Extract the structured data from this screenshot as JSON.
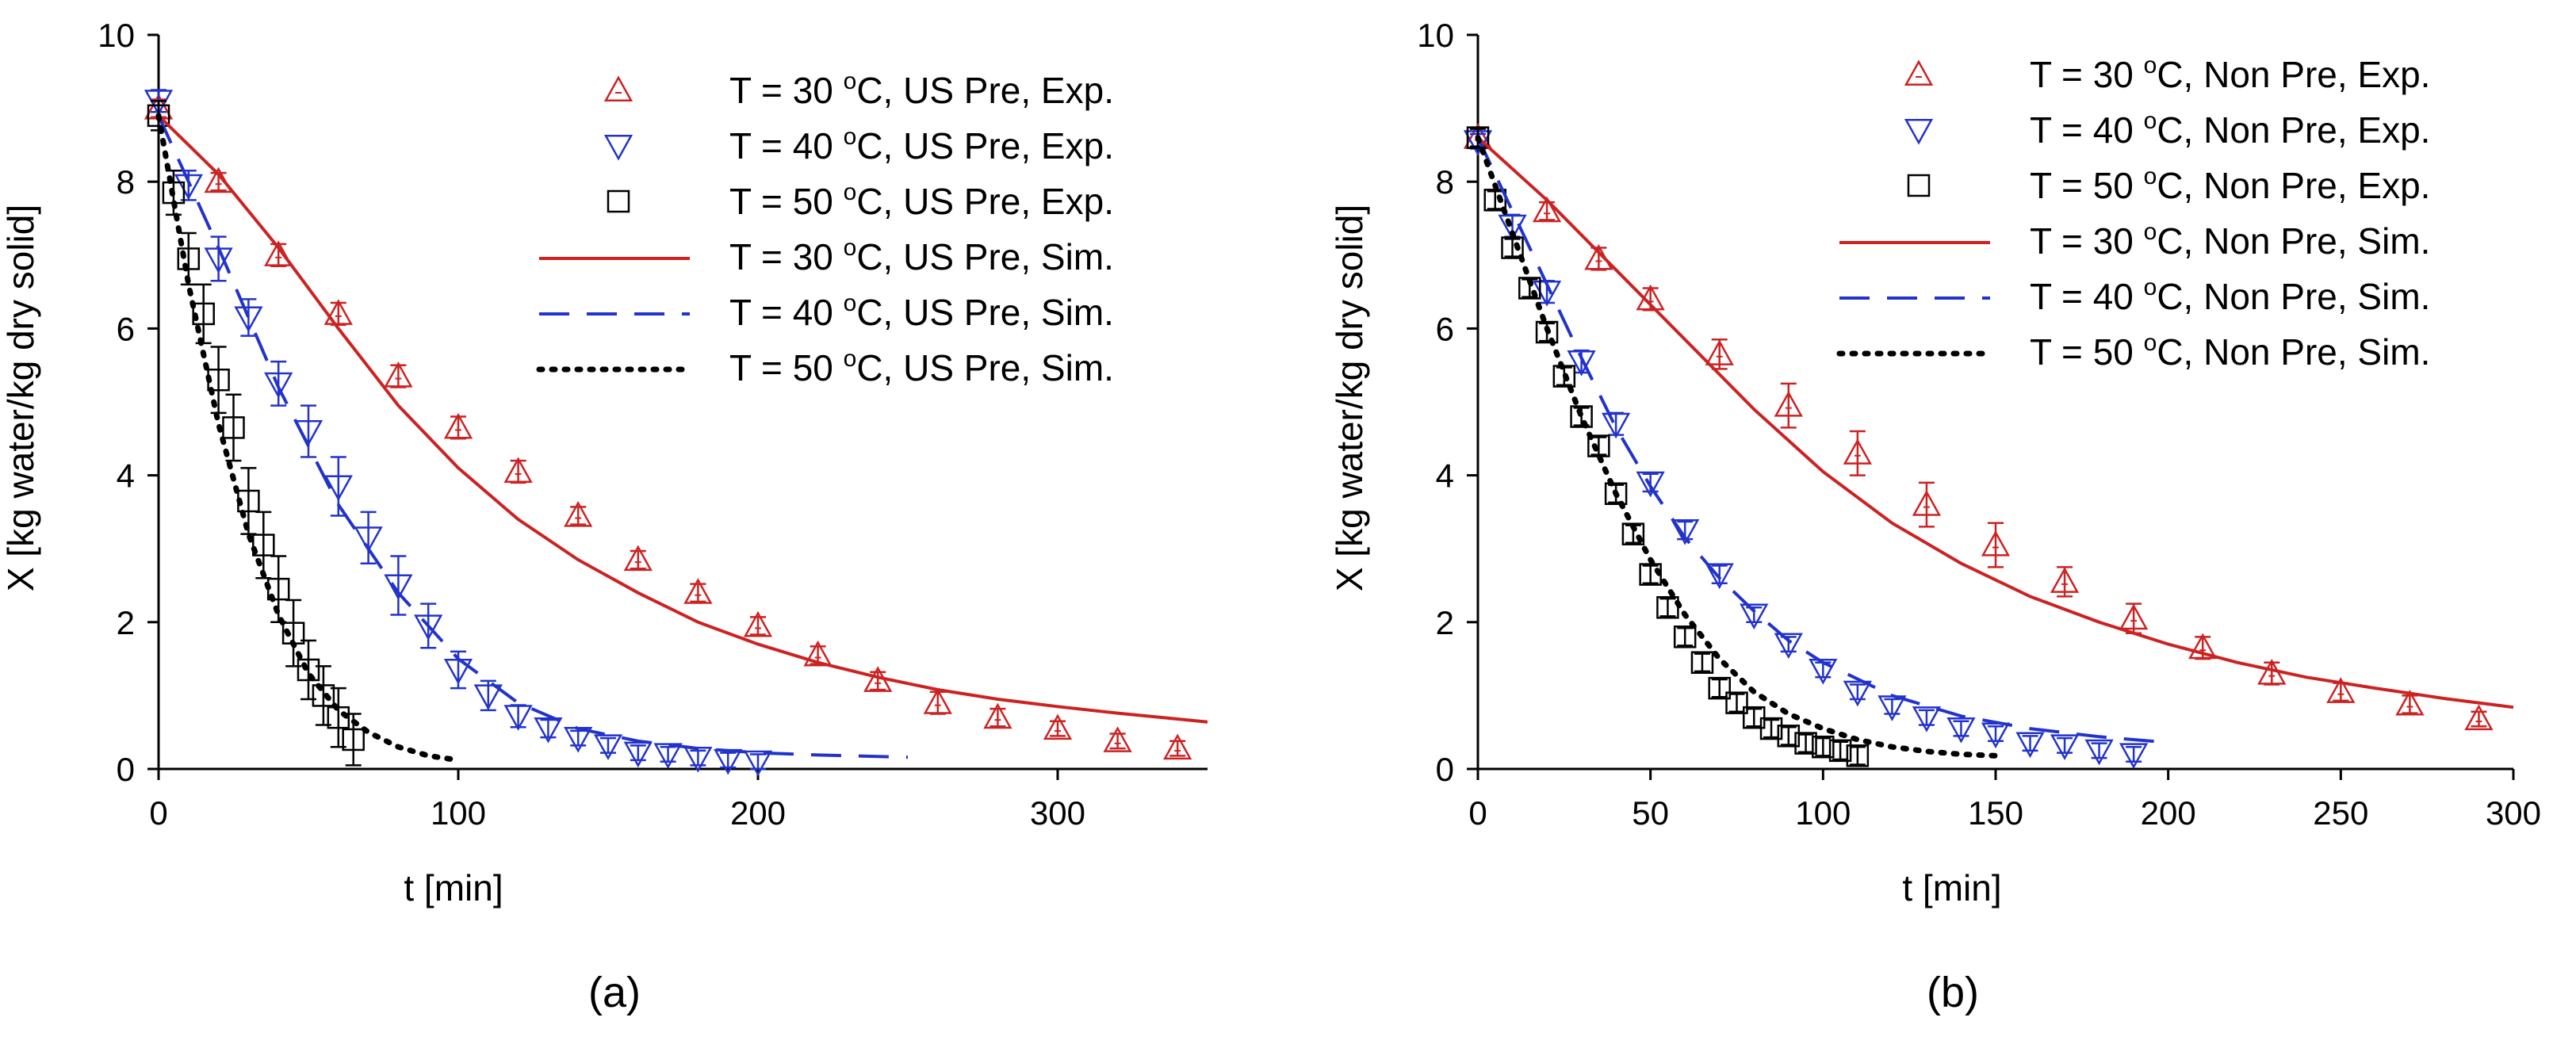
{
  "chart_data": [
    {
      "type": "scatter",
      "panel_label": "(a)",
      "xlabel": "t [min]",
      "ylabel": "X [kg water/kg dry solid]",
      "xlim": [
        0,
        350
      ],
      "ylim": [
        0,
        10
      ],
      "xticks": [
        "0",
        "100",
        "200",
        "300"
      ],
      "yticks": [
        "0",
        "2",
        "4",
        "6",
        "8",
        "10"
      ],
      "legend_position": "top-right",
      "colors": {
        "red": "#cc2222",
        "blue": "#2233cc",
        "black": "#000000"
      },
      "series": [
        {
          "name": "T = 30 °C, US Pre, Exp.",
          "label_main": "T = 30 ",
          "label_sup": "o",
          "label_rest": "C, US Pre, Exp.",
          "kind": "markers",
          "marker": "triangle-up",
          "color": "red",
          "x": [
            0,
            20,
            40,
            60,
            80,
            100,
            120,
            140,
            160,
            180,
            200,
            220,
            240,
            260,
            280,
            300,
            320,
            340
          ],
          "y": [
            9.0,
            8.0,
            7.0,
            6.2,
            5.35,
            4.65,
            4.05,
            3.45,
            2.85,
            2.4,
            1.95,
            1.55,
            1.2,
            0.9,
            0.7,
            0.55,
            0.38,
            0.28
          ],
          "err": [
            0.12,
            0.12,
            0.15,
            0.15,
            0.15,
            0.15,
            0.15,
            0.12,
            0.12,
            0.12,
            0.12,
            0.12,
            0.12,
            0.15,
            0.12,
            0.1,
            0.1,
            0.1
          ]
        },
        {
          "name": "T = 40 °C, US Pre, Exp.",
          "label_main": "T = 40 ",
          "label_sup": "o",
          "label_rest": "C, US Pre, Exp.",
          "kind": "markers",
          "marker": "triangle-down",
          "color": "blue",
          "x": [
            0,
            10,
            20,
            30,
            40,
            50,
            60,
            70,
            80,
            90,
            100,
            110,
            120,
            130,
            140,
            150,
            160,
            170,
            180,
            190,
            200
          ],
          "y": [
            9.1,
            7.95,
            6.95,
            6.15,
            5.25,
            4.6,
            3.85,
            3.15,
            2.5,
            1.95,
            1.35,
            1.0,
            0.72,
            0.55,
            0.42,
            0.32,
            0.22,
            0.2,
            0.15,
            0.12,
            0.1
          ],
          "err": [
            0.15,
            0.2,
            0.3,
            0.25,
            0.3,
            0.35,
            0.4,
            0.35,
            0.4,
            0.3,
            0.25,
            0.2,
            0.15,
            0.12,
            0.1,
            0.1,
            0.1,
            0.1,
            0.1,
            0.1,
            0.1
          ]
        },
        {
          "name": "T = 50 °C, US Pre, Exp.",
          "label_main": "T = 50 ",
          "label_sup": "o",
          "label_rest": "C, US Pre, Exp.",
          "kind": "markers",
          "marker": "square",
          "color": "black",
          "x": [
            0,
            5,
            10,
            15,
            20,
            25,
            30,
            35,
            40,
            45,
            50,
            55,
            60,
            65
          ],
          "y": [
            8.9,
            7.85,
            6.95,
            6.2,
            5.3,
            4.65,
            3.65,
            3.05,
            2.45,
            1.85,
            1.35,
            1.0,
            0.7,
            0.4
          ],
          "err": [
            0.2,
            0.3,
            0.35,
            0.4,
            0.45,
            0.45,
            0.45,
            0.45,
            0.45,
            0.45,
            0.4,
            0.4,
            0.4,
            0.35
          ]
        },
        {
          "name": "T = 30 °C, US Pre, Sim.",
          "label_main": "T = 30 ",
          "label_sup": "o",
          "label_rest": "C, US Pre, Sim.",
          "kind": "line",
          "dash": "solid",
          "color": "red",
          "x": [
            0,
            20,
            40,
            60,
            80,
            100,
            120,
            140,
            160,
            180,
            200,
            220,
            240,
            260,
            280,
            300,
            320,
            340,
            350
          ],
          "y": [
            8.9,
            8.1,
            7.1,
            6.0,
            4.95,
            4.1,
            3.4,
            2.85,
            2.4,
            2.0,
            1.7,
            1.45,
            1.25,
            1.08,
            0.95,
            0.85,
            0.76,
            0.68,
            0.64
          ]
        },
        {
          "name": "T = 40 °C, US Pre, Sim.",
          "label_main": "T = 40 ",
          "label_sup": "o",
          "label_rest": "C, US Pre, Sim.",
          "kind": "line",
          "dash": "long-dash",
          "color": "blue",
          "x": [
            0,
            20,
            40,
            60,
            80,
            100,
            120,
            140,
            160,
            180,
            200,
            220,
            250
          ],
          "y": [
            8.9,
            7.1,
            5.2,
            3.6,
            2.4,
            1.5,
            0.9,
            0.55,
            0.38,
            0.28,
            0.22,
            0.19,
            0.16
          ]
        },
        {
          "name": "T = 50 °C, US Pre, Sim.",
          "label_main": "T = 50 ",
          "label_sup": "o",
          "label_rest": "C, US Pre, Sim.",
          "kind": "line",
          "dash": "dotted",
          "color": "black",
          "x": [
            0,
            10,
            20,
            30,
            40,
            50,
            60,
            70,
            80,
            90,
            100
          ],
          "y": [
            8.9,
            6.6,
            4.7,
            3.2,
            2.1,
            1.3,
            0.8,
            0.5,
            0.3,
            0.18,
            0.12
          ]
        }
      ]
    },
    {
      "type": "scatter",
      "panel_label": "(b)",
      "xlabel": "t [min]",
      "ylabel": "X [kg water/kg dry solid]",
      "xlim": [
        0,
        300
      ],
      "ylim": [
        0,
        10
      ],
      "xticks": [
        "0",
        "50",
        "100",
        "150",
        "200",
        "250",
        "300"
      ],
      "yticks": [
        "0",
        "2",
        "4",
        "6",
        "8",
        "10"
      ],
      "legend_position": "top-right",
      "colors": {
        "red": "#cc2222",
        "blue": "#2233cc",
        "black": "#000000"
      },
      "series": [
        {
          "name": "T = 30 °C, Non Pre, Exp.",
          "label_main": "T = 30 ",
          "label_sup": "o",
          "label_rest": "C, Non Pre, Exp.",
          "kind": "markers",
          "marker": "triangle-up",
          "color": "red",
          "x": [
            0,
            20,
            35,
            50,
            70,
            90,
            110,
            130,
            150,
            170,
            190,
            210,
            230,
            250,
            270,
            290
          ],
          "y": [
            8.6,
            7.6,
            6.95,
            6.4,
            5.65,
            4.95,
            4.3,
            3.6,
            3.05,
            2.55,
            2.05,
            1.65,
            1.3,
            1.05,
            0.88,
            0.68
          ],
          "err": [
            0.12,
            0.12,
            0.15,
            0.15,
            0.2,
            0.3,
            0.3,
            0.3,
            0.3,
            0.2,
            0.2,
            0.15,
            0.15,
            0.12,
            0.12,
            0.1
          ]
        },
        {
          "name": "T = 40 °C, Non Pre, Exp.",
          "label_main": "T = 40 ",
          "label_sup": "o",
          "label_rest": "C, Non Pre, Exp.",
          "kind": "markers",
          "marker": "triangle-down",
          "color": "blue",
          "x": [
            0,
            10,
            20,
            30,
            40,
            50,
            60,
            70,
            80,
            90,
            100,
            110,
            120,
            130,
            140,
            150,
            160,
            170,
            180,
            190
          ],
          "y": [
            8.55,
            7.4,
            6.5,
            5.55,
            4.7,
            3.9,
            3.25,
            2.65,
            2.1,
            1.7,
            1.35,
            1.05,
            0.85,
            0.7,
            0.55,
            0.48,
            0.35,
            0.32,
            0.25,
            0.2
          ],
          "err": [
            0.1,
            0.15,
            0.15,
            0.15,
            0.15,
            0.12,
            0.12,
            0.12,
            0.1,
            0.1,
            0.1,
            0.1,
            0.1,
            0.1,
            0.1,
            0.1,
            0.1,
            0.1,
            0.1,
            0.1
          ]
        },
        {
          "name": "T = 50 °C, Non Pre, Exp.",
          "label_main": "T = 50 ",
          "label_sup": "o",
          "label_rest": "C, Non Pre, Exp.",
          "kind": "markers",
          "marker": "square",
          "color": "black",
          "x": [
            0,
            5,
            10,
            15,
            20,
            25,
            30,
            35,
            40,
            45,
            50,
            55,
            60,
            65,
            70,
            75,
            80,
            85,
            90,
            95,
            100,
            105,
            110
          ],
          "y": [
            8.6,
            7.75,
            7.1,
            6.55,
            5.95,
            5.35,
            4.8,
            4.4,
            3.75,
            3.2,
            2.65,
            2.2,
            1.8,
            1.45,
            1.1,
            0.9,
            0.7,
            0.55,
            0.45,
            0.35,
            0.3,
            0.25,
            0.18
          ],
          "err": [
            0.12,
            0.12,
            0.12,
            0.12,
            0.12,
            0.12,
            0.12,
            0.12,
            0.12,
            0.12,
            0.12,
            0.12,
            0.12,
            0.12,
            0.12,
            0.12,
            0.12,
            0.12,
            0.12,
            0.12,
            0.12,
            0.12,
            0.12
          ]
        },
        {
          "name": "T = 30 °C, Non Pre, Sim.",
          "label_main": "T = 30 ",
          "label_sup": "o",
          "label_rest": "C, Non Pre, Sim.",
          "kind": "line",
          "dash": "solid",
          "color": "red",
          "x": [
            0,
            20,
            40,
            60,
            80,
            100,
            120,
            140,
            160,
            180,
            200,
            220,
            240,
            260,
            280,
            300
          ],
          "y": [
            8.6,
            7.75,
            6.8,
            5.85,
            4.9,
            4.05,
            3.35,
            2.8,
            2.35,
            2.0,
            1.7,
            1.45,
            1.25,
            1.1,
            0.96,
            0.84
          ]
        },
        {
          "name": "T = 40 °C, Non Pre, Sim.",
          "label_main": "T = 40 ",
          "label_sup": "o",
          "label_rest": "C, Non Pre, Sim.",
          "kind": "line",
          "dash": "long-dash",
          "color": "blue",
          "x": [
            0,
            10,
            20,
            30,
            40,
            50,
            60,
            70,
            80,
            90,
            100,
            120,
            140,
            160,
            180,
            200
          ],
          "y": [
            8.6,
            7.6,
            6.6,
            5.6,
            4.65,
            3.85,
            3.15,
            2.6,
            2.15,
            1.75,
            1.45,
            1.0,
            0.72,
            0.55,
            0.44,
            0.36
          ]
        },
        {
          "name": "T = 50 °C, Non Pre, Sim.",
          "label_main": "T = 50 ",
          "label_sup": "o",
          "label_rest": "C, Non Pre, Sim.",
          "kind": "line",
          "dash": "dotted",
          "color": "black",
          "x": [
            0,
            10,
            20,
            30,
            40,
            50,
            60,
            70,
            80,
            90,
            100,
            110,
            120,
            130,
            140,
            150
          ],
          "y": [
            8.6,
            7.3,
            6.0,
            4.8,
            3.75,
            2.85,
            2.1,
            1.5,
            1.05,
            0.75,
            0.55,
            0.4,
            0.3,
            0.24,
            0.2,
            0.18
          ]
        }
      ]
    }
  ]
}
